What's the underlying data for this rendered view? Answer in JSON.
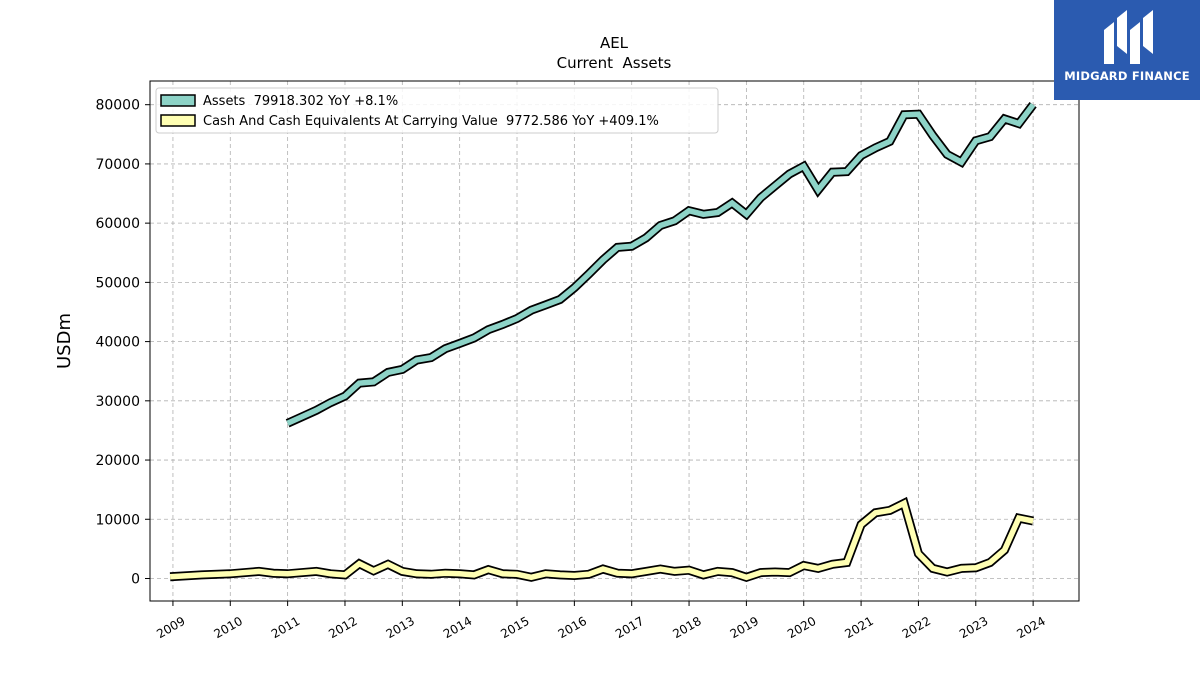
{
  "logo": {
    "text": "MIDGARD FINANCE",
    "icon": "midgard-logo-icon",
    "color": "#2b5bb0"
  },
  "chart_data": {
    "type": "line",
    "title": "AEL",
    "subtitle": "Current  Assets",
    "ylabel": "USDm",
    "xlabel": "",
    "ylim": [
      -3800,
      84000
    ],
    "xlim": [
      2008.6,
      2024.8
    ],
    "yticks": [
      0,
      10000,
      20000,
      30000,
      40000,
      50000,
      60000,
      70000,
      80000
    ],
    "ytick_labels": [
      "0",
      "10000",
      "20000",
      "30000",
      "40000",
      "50000",
      "60000",
      "70000",
      "80000"
    ],
    "xticks": [
      2009,
      2010,
      2011,
      2012,
      2013,
      2014,
      2015,
      2016,
      2017,
      2018,
      2019,
      2020,
      2021,
      2022,
      2023,
      2024
    ],
    "xtick_labels": [
      "2009",
      "2010",
      "2011",
      "2012",
      "2013",
      "2014",
      "2015",
      "2016",
      "2017",
      "2018",
      "2019",
      "2020",
      "2021",
      "2022",
      "2023",
      "2024"
    ],
    "grid": true,
    "legend_position": "top-left",
    "series": [
      {
        "name": "Assets  79918.302 YoY +8.1%",
        "color": "#8dd3c7",
        "points": [
          [
            2011.0,
            26200
          ],
          [
            2011.25,
            27300
          ],
          [
            2011.5,
            28400
          ],
          [
            2011.75,
            29700
          ],
          [
            2012.0,
            30800
          ],
          [
            2012.25,
            33000
          ],
          [
            2012.5,
            33200
          ],
          [
            2012.75,
            34800
          ],
          [
            2013.0,
            35300
          ],
          [
            2013.25,
            36900
          ],
          [
            2013.5,
            37300
          ],
          [
            2013.75,
            38800
          ],
          [
            2014.0,
            39700
          ],
          [
            2014.25,
            40600
          ],
          [
            2014.5,
            42000
          ],
          [
            2014.75,
            42900
          ],
          [
            2015.0,
            43900
          ],
          [
            2015.25,
            45300
          ],
          [
            2015.5,
            46200
          ],
          [
            2015.75,
            47100
          ],
          [
            2016.0,
            49100
          ],
          [
            2016.25,
            51400
          ],
          [
            2016.5,
            53800
          ],
          [
            2016.75,
            55900
          ],
          [
            2017.0,
            56100
          ],
          [
            2017.25,
            57500
          ],
          [
            2017.5,
            59600
          ],
          [
            2017.75,
            60400
          ],
          [
            2018.0,
            62100
          ],
          [
            2018.25,
            61500
          ],
          [
            2018.5,
            61800
          ],
          [
            2018.75,
            63400
          ],
          [
            2019.0,
            61500
          ],
          [
            2019.25,
            64300
          ],
          [
            2019.5,
            66300
          ],
          [
            2019.75,
            68300
          ],
          [
            2020.0,
            69600
          ],
          [
            2020.25,
            65600
          ],
          [
            2020.5,
            68600
          ],
          [
            2020.75,
            68700
          ],
          [
            2021.0,
            71400
          ],
          [
            2021.25,
            72700
          ],
          [
            2021.5,
            73800
          ],
          [
            2021.75,
            78300
          ],
          [
            2022.0,
            78400
          ],
          [
            2022.25,
            74800
          ],
          [
            2022.5,
            71600
          ],
          [
            2022.75,
            70300
          ],
          [
            2023.0,
            73900
          ],
          [
            2023.25,
            74600
          ],
          [
            2023.5,
            77600
          ],
          [
            2023.75,
            76800
          ],
          [
            2024.0,
            80000
          ]
        ]
      },
      {
        "name": "Cash And Cash Equivalents At Carrying Value  9772.586 YoY +409.1%",
        "color": "#ffffb3",
        "points": [
          [
            2008.95,
            300
          ],
          [
            2009.5,
            600
          ],
          [
            2010.0,
            800
          ],
          [
            2010.5,
            1200
          ],
          [
            2010.75,
            900
          ],
          [
            2011.0,
            800
          ],
          [
            2011.5,
            1200
          ],
          [
            2011.75,
            800
          ],
          [
            2012.0,
            600
          ],
          [
            2012.25,
            2500
          ],
          [
            2012.5,
            1300
          ],
          [
            2012.75,
            2400
          ],
          [
            2013.0,
            1200
          ],
          [
            2013.25,
            800
          ],
          [
            2013.5,
            700
          ],
          [
            2013.75,
            900
          ],
          [
            2014.0,
            800
          ],
          [
            2014.25,
            600
          ],
          [
            2014.5,
            1500
          ],
          [
            2014.75,
            800
          ],
          [
            2015.0,
            700
          ],
          [
            2015.25,
            200
          ],
          [
            2015.5,
            800
          ],
          [
            2015.75,
            600
          ],
          [
            2016.0,
            500
          ],
          [
            2016.25,
            700
          ],
          [
            2016.5,
            1600
          ],
          [
            2016.75,
            900
          ],
          [
            2017.0,
            800
          ],
          [
            2017.25,
            1200
          ],
          [
            2017.5,
            1600
          ],
          [
            2017.75,
            1200
          ],
          [
            2018.0,
            1400
          ],
          [
            2018.25,
            600
          ],
          [
            2018.5,
            1200
          ],
          [
            2018.75,
            1000
          ],
          [
            2019.0,
            200
          ],
          [
            2019.25,
            1000
          ],
          [
            2019.5,
            1100
          ],
          [
            2019.75,
            1000
          ],
          [
            2020.0,
            2200
          ],
          [
            2020.25,
            1700
          ],
          [
            2020.5,
            2400
          ],
          [
            2020.75,
            2700
          ],
          [
            2021.0,
            9100
          ],
          [
            2021.25,
            11100
          ],
          [
            2021.5,
            11500
          ],
          [
            2021.75,
            12700
          ],
          [
            2022.0,
            4200
          ],
          [
            2022.25,
            1700
          ],
          [
            2022.5,
            1100
          ],
          [
            2022.75,
            1700
          ],
          [
            2023.0,
            1800
          ],
          [
            2023.25,
            2700
          ],
          [
            2023.5,
            4800
          ],
          [
            2023.75,
            10200
          ],
          [
            2024.0,
            9700
          ]
        ]
      }
    ]
  }
}
